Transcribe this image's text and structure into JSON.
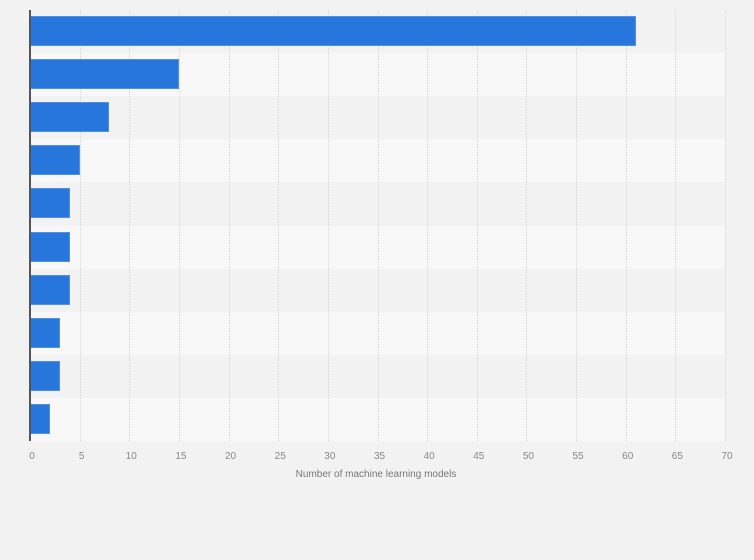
{
  "chart_data": {
    "type": "bar",
    "orientation": "horizontal",
    "title": "",
    "categories": [
      "",
      "",
      "",
      "",
      "",
      "",
      "",
      "",
      "",
      ""
    ],
    "values": [
      61,
      15,
      8,
      5,
      4,
      4,
      4,
      3,
      3,
      2
    ],
    "xlabel": "Number of machine learning models",
    "ylabel": "",
    "xlim": [
      0,
      70
    ],
    "xticks": [
      0,
      5,
      10,
      15,
      20,
      25,
      30,
      35,
      40,
      45,
      50,
      55,
      60,
      65,
      70
    ],
    "grid": true,
    "legend": null,
    "bar_color": "#2776dc"
  }
}
